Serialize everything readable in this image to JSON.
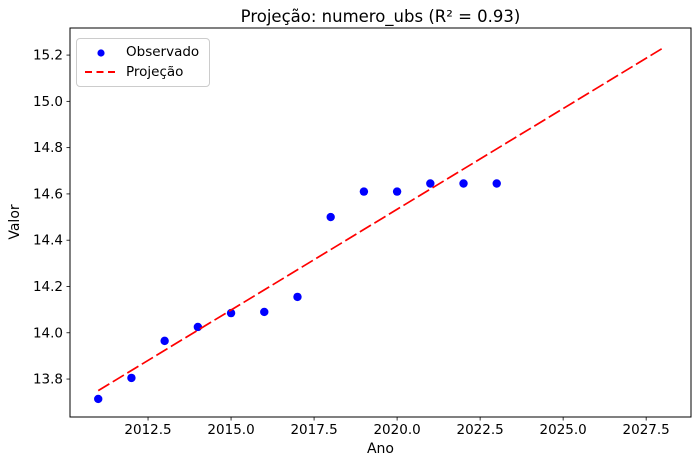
{
  "chart_data": {
    "type": "scatter",
    "title": "Projeção: numero_ubs (R² = 0.93)",
    "xlabel": "Ano",
    "ylabel": "Valor",
    "xlim": [
      2010.15,
      2028.85
    ],
    "ylim": [
      13.636,
      15.317
    ],
    "x_ticks": [
      2012.5,
      2015.0,
      2017.5,
      2020.0,
      2022.5,
      2025.0,
      2027.5
    ],
    "y_ticks": [
      13.8,
      14.0,
      14.2,
      14.4,
      14.6,
      14.8,
      15.0,
      15.2
    ],
    "grid": false,
    "legend_position": "upper left",
    "series": [
      {
        "name": "Observado",
        "type": "scatter",
        "color": "#0000ff",
        "x": [
          2011,
          2012,
          2013,
          2014,
          2015,
          2016,
          2017,
          2018,
          2019,
          2020,
          2021,
          2022,
          2023
        ],
        "y": [
          13.714,
          13.805,
          13.965,
          14.025,
          14.085,
          14.09,
          14.155,
          14.5,
          14.61,
          14.61,
          14.645,
          14.645,
          14.645
        ]
      },
      {
        "name": "Projeção",
        "type": "line",
        "style": "dashed",
        "color": "#ff0000",
        "x": [
          2011,
          2028
        ],
        "y": [
          13.75,
          15.23
        ]
      }
    ]
  },
  "colors": {
    "background": "#ffffff",
    "axis": "#000000",
    "legend_border": "#cccccc"
  }
}
